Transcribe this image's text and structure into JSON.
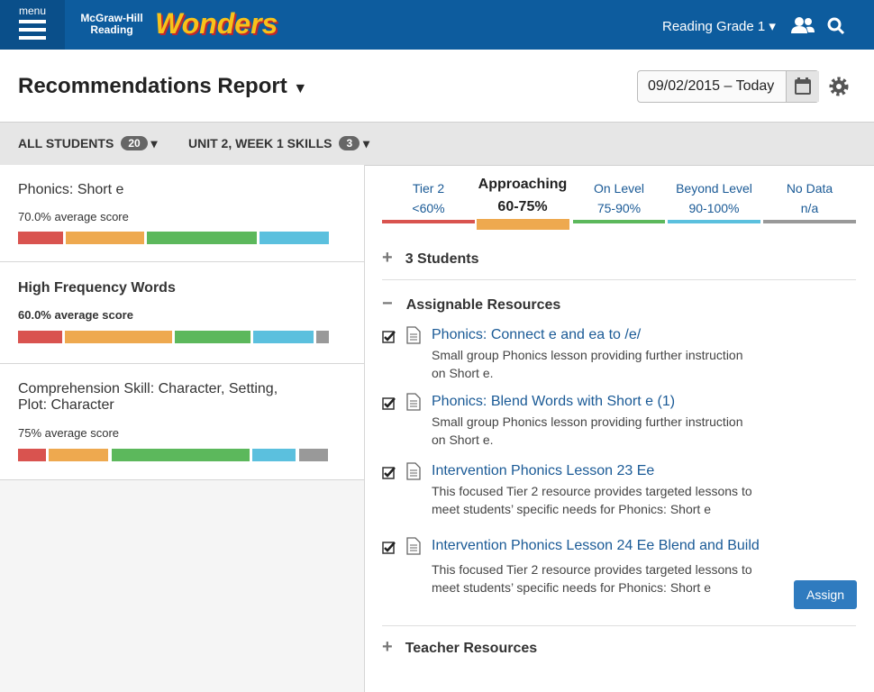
{
  "header": {
    "menu": "menu",
    "brand": "McGraw-Hill Reading",
    "logo": "Wonders",
    "grade": "Reading Grade 1"
  },
  "page": {
    "title": "Recommendations Report",
    "date_range": "09/02/2015 – Today"
  },
  "filters": [
    {
      "label": "ALL STUDENTS",
      "count": 20
    },
    {
      "label": "UNIT 2, WEEK 1 SKILLS",
      "count": 3
    }
  ],
  "skills": [
    {
      "name": "Phonics: Short e",
      "score": "70.0% average score"
    },
    {
      "name": "High Frequency Words",
      "score": "60.0% average score"
    },
    {
      "name": "Comprehension Skill: Character, Setting, Plot: Character",
      "score": "75% average score"
    }
  ],
  "tiers": [
    {
      "name": "Tier 2",
      "range": "<60%"
    },
    {
      "name": "Approaching",
      "range": "60-75%"
    },
    {
      "name": "On Level",
      "range": "75-90%"
    },
    {
      "name": "Beyond Level",
      "range": "90-100%"
    },
    {
      "name": "No Data",
      "range": "n/a"
    }
  ],
  "sections": {
    "students": "3 Students",
    "assignable": "Assignable Resources",
    "teacher": "Teacher Resources"
  },
  "resources": [
    {
      "title": "Phonics: Connect e and ea to /e/",
      "description": "Small group Phonics lesson providing further instruction on Short e."
    },
    {
      "title": "Phonics: Blend Words with Short e (1)",
      "description": "Small group Phonics lesson providing further instruction on Short e."
    },
    {
      "title": "Intervention Phonics Lesson 23 Ee",
      "description": "This focused Tier 2 resource provides targeted lessons to meet students’ specific needs for Phonics: Short e"
    },
    {
      "title": "Intervention Phonics Lesson 24 Ee Blend and Build",
      "description": "This focused Tier 2 resource provides targeted lessons to meet students’ specific needs for Phonics: Short e"
    }
  ],
  "assign_button": "Assign"
}
